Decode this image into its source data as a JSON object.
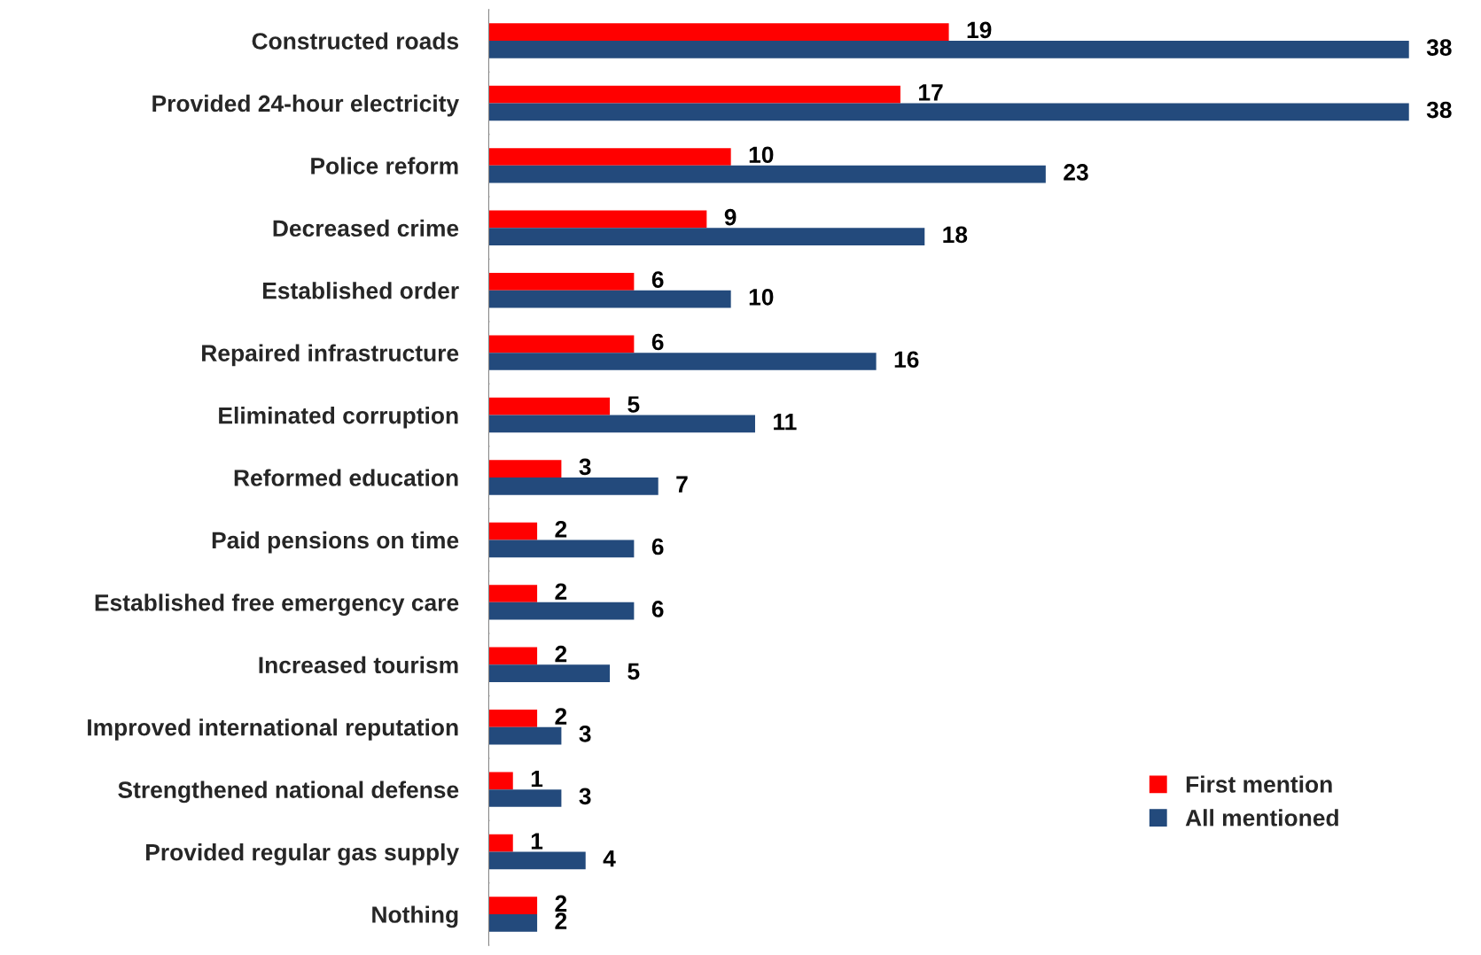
{
  "chart_data": {
    "type": "bar",
    "orientation": "horizontal",
    "categories": [
      "Constructed roads",
      "Provided 24-hour electricity",
      "Police reform",
      "Decreased crime",
      "Established order",
      "Repaired infrastructure",
      "Eliminated corruption",
      "Reformed education",
      "Paid pensions on time",
      "Established free emergency care",
      "Increased tourism",
      "Improved international reputation",
      "Strengthened national defense",
      "Provided regular gas supply",
      "Nothing"
    ],
    "series": [
      {
        "name": "First mention",
        "color": "#ff0000",
        "values": [
          19,
          17,
          10,
          9,
          6,
          6,
          5,
          3,
          2,
          2,
          2,
          2,
          1,
          1,
          2
        ]
      },
      {
        "name": "All mentioned",
        "color": "#234a7c",
        "values": [
          38,
          38,
          23,
          18,
          10,
          16,
          11,
          7,
          6,
          6,
          5,
          3,
          3,
          4,
          2
        ]
      }
    ],
    "data_labels": true,
    "legend": "bottom right",
    "grid": false
  }
}
